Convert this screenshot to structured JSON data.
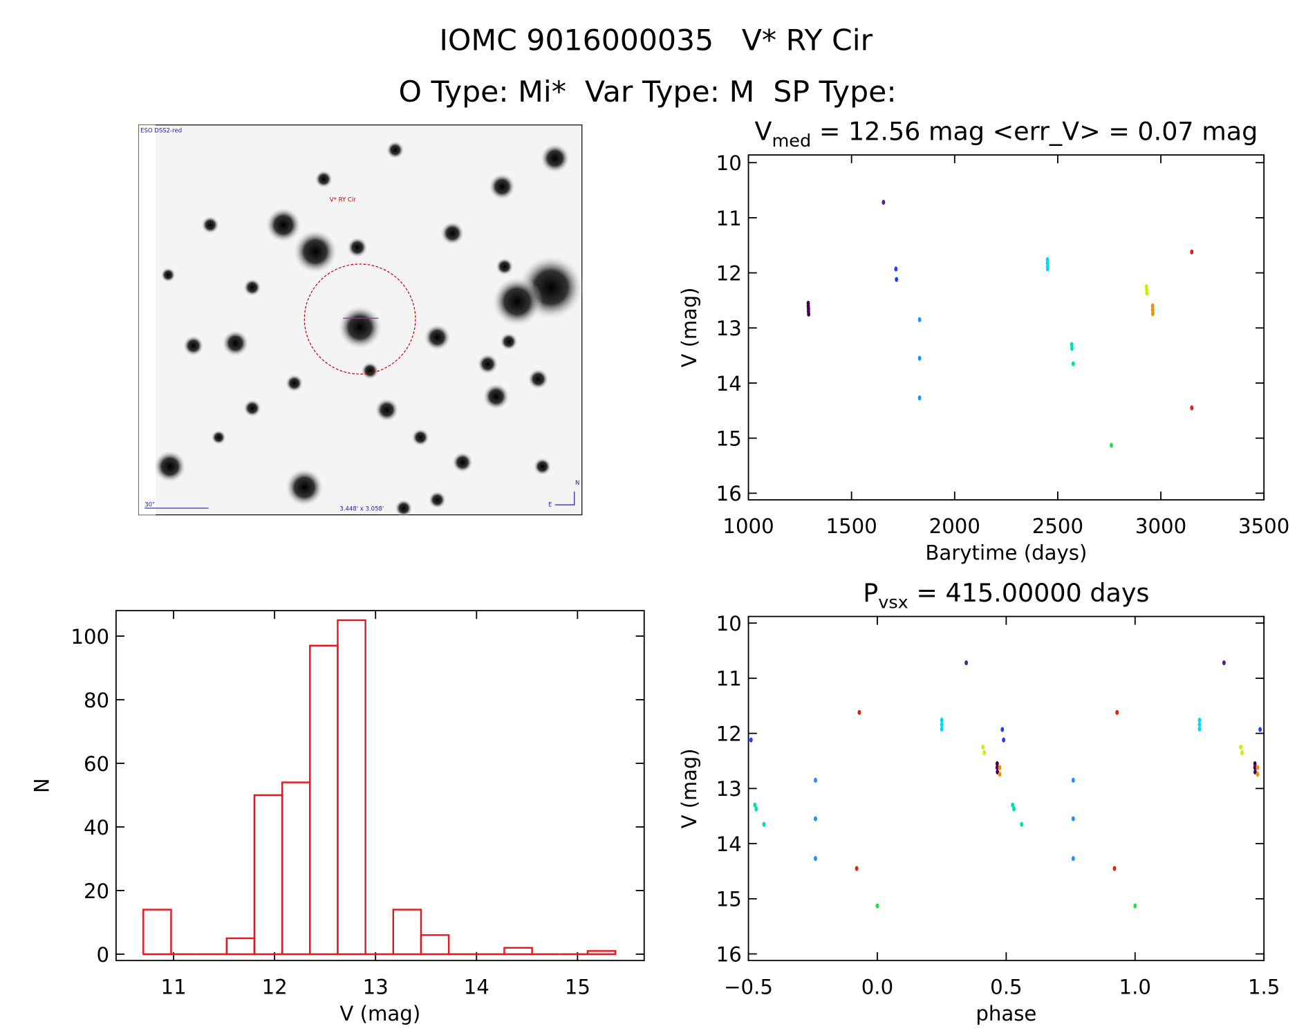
{
  "title": "IOMC 9016000035   V* RY Cir",
  "subtitle": "O Type: Mi*  Var Type: M  SP Type:",
  "image": {
    "survey": "ESO DSS2-red",
    "target": "V* RY Cir",
    "scale": "30\"",
    "size": "3.448' x 3.058'",
    "north": "N",
    "east": "E"
  },
  "chart_data": [
    {
      "type": "scatter",
      "title": "V",
      "title_sub": "med",
      "title_rest": " = 12.56 mag <err_V> = 0.07 mag",
      "xlabel": "Barytime (days)",
      "ylabel": "V (mag)",
      "xlim": [
        1000,
        3500
      ],
      "ylim": [
        16.12,
        9.86
      ],
      "xticks": [
        1000,
        1500,
        2000,
        2500,
        3000,
        3500
      ],
      "yticks": [
        10,
        11,
        12,
        13,
        14,
        15,
        16
      ],
      "series": [
        {
          "name": "s1",
          "color": "#4b0055",
          "x": [
            1290,
            1290,
            1291,
            1291,
            1292
          ],
          "values": [
            12.55,
            12.6,
            12.65,
            12.7,
            12.75
          ]
        },
        {
          "name": "s2",
          "color": "#5a1aa0",
          "x": [
            1655
          ],
          "values": [
            10.72
          ]
        },
        {
          "name": "s3",
          "color": "#1f3fff",
          "x": [
            1715,
            1718
          ],
          "values": [
            11.93,
            12.12
          ]
        },
        {
          "name": "s4",
          "color": "#1e90ff",
          "x": [
            1830,
            1830,
            1830
          ],
          "values": [
            12.85,
            13.55,
            14.27
          ]
        },
        {
          "name": "s5",
          "color": "#00d8ff",
          "x": [
            2450,
            2450,
            2451,
            2451
          ],
          "values": [
            11.76,
            11.82,
            11.88,
            11.93
          ]
        },
        {
          "name": "s6",
          "color": "#00e0b0",
          "x": [
            2568,
            2569,
            2575
          ],
          "values": [
            13.3,
            13.37,
            13.65
          ]
        },
        {
          "name": "s7",
          "color": "#22dd44",
          "x": [
            2760
          ],
          "values": [
            15.13
          ]
        },
        {
          "name": "s8",
          "color": "#c8f000",
          "x": [
            2930,
            2931,
            2932
          ],
          "values": [
            12.25,
            12.31,
            12.37
          ]
        },
        {
          "name": "s9",
          "color": "#f09000",
          "x": [
            2960,
            2960,
            2961
          ],
          "values": [
            12.6,
            12.67,
            12.74
          ]
        },
        {
          "name": "s10",
          "color": "#e8200a",
          "x": [
            3150,
            3150
          ],
          "values": [
            11.62,
            14.45
          ]
        }
      ]
    },
    {
      "type": "scatter",
      "title": "P",
      "title_sub": "vsx",
      "title_rest": " = 415.00000 days",
      "xlabel": "phase",
      "ylabel": "V (mag)",
      "xlim": [
        -0.5,
        1.5
      ],
      "ylim": [
        16.12,
        9.88
      ],
      "xticks": [
        {
          "value": -0.5,
          "label": "−0.5"
        },
        {
          "value": 0,
          "label": "0.0"
        },
        0.5,
        {
          "value": 1,
          "label": "1.0"
        },
        1.5
      ],
      "yticks": [
        10,
        11,
        12,
        13,
        14,
        15,
        16
      ],
      "series": [
        {
          "name": "s1",
          "color": "#4b0055",
          "x": [
            0.465,
            0.465,
            0.466,
            1.465,
            1.465,
            1.466
          ],
          "values": [
            12.55,
            12.62,
            12.7,
            12.55,
            12.62,
            12.7
          ]
        },
        {
          "name": "s2",
          "color": "#5a1aa0",
          "x": [
            0.345,
            1.345
          ],
          "values": [
            10.72,
            10.72
          ]
        },
        {
          "name": "s3",
          "color": "#1f3fff",
          "x": [
            0.485,
            0.49,
            1.485,
            -0.49
          ],
          "values": [
            11.93,
            12.12,
            11.93,
            12.12
          ]
        },
        {
          "name": "s4",
          "color": "#1e90ff",
          "x": [
            -0.24,
            -0.24,
            -0.24,
            0.76,
            0.76,
            0.76
          ],
          "values": [
            12.85,
            13.55,
            14.27,
            12.85,
            13.55,
            14.27
          ]
        },
        {
          "name": "s5",
          "color": "#00d8ff",
          "x": [
            0.25,
            0.25,
            0.25,
            1.25,
            1.25,
            1.25
          ],
          "values": [
            11.76,
            11.84,
            11.92,
            11.76,
            11.84,
            11.92
          ]
        },
        {
          "name": "s6",
          "color": "#00e0b0",
          "x": [
            -0.475,
            -0.47,
            -0.44,
            0.525,
            0.53,
            0.56
          ],
          "values": [
            13.3,
            13.37,
            13.65,
            13.3,
            13.37,
            13.65
          ]
        },
        {
          "name": "s7",
          "color": "#22dd44",
          "x": [
            0.0,
            1.0
          ],
          "values": [
            15.13,
            15.13
          ]
        },
        {
          "name": "s8",
          "color": "#c8f000",
          "x": [
            0.41,
            0.415,
            1.41,
            1.415
          ],
          "values": [
            12.25,
            12.35,
            12.25,
            12.35
          ]
        },
        {
          "name": "s9",
          "color": "#f09000",
          "x": [
            0.475,
            0.475,
            1.475,
            1.475
          ],
          "values": [
            12.62,
            12.74,
            12.62,
            12.74
          ]
        },
        {
          "name": "s10",
          "color": "#e8200a",
          "x": [
            -0.07,
            -0.08,
            0.93,
            0.92
          ],
          "values": [
            11.62,
            14.45,
            11.62,
            14.45
          ]
        }
      ]
    },
    {
      "type": "histogram",
      "xlabel": "V (mag)",
      "ylabel": "N",
      "color": "#e8141e",
      "xlim": [
        10.43,
        15.66
      ],
      "ylim": [
        -2,
        108
      ],
      "xticks": [
        11,
        12,
        13,
        14,
        15
      ],
      "yticks": [
        0,
        20,
        40,
        60,
        80,
        100
      ],
      "bins": [
        10.7,
        10.975,
        11.25,
        11.525,
        11.8,
        12.075,
        12.35,
        12.625,
        12.9,
        13.175,
        13.45,
        13.725,
        14.0,
        14.275,
        14.55,
        14.825,
        15.1,
        15.375
      ],
      "values": [
        14,
        0,
        0,
        5,
        50,
        54,
        97,
        105,
        0,
        14,
        6,
        0,
        0,
        2,
        0,
        0,
        1
      ]
    }
  ]
}
